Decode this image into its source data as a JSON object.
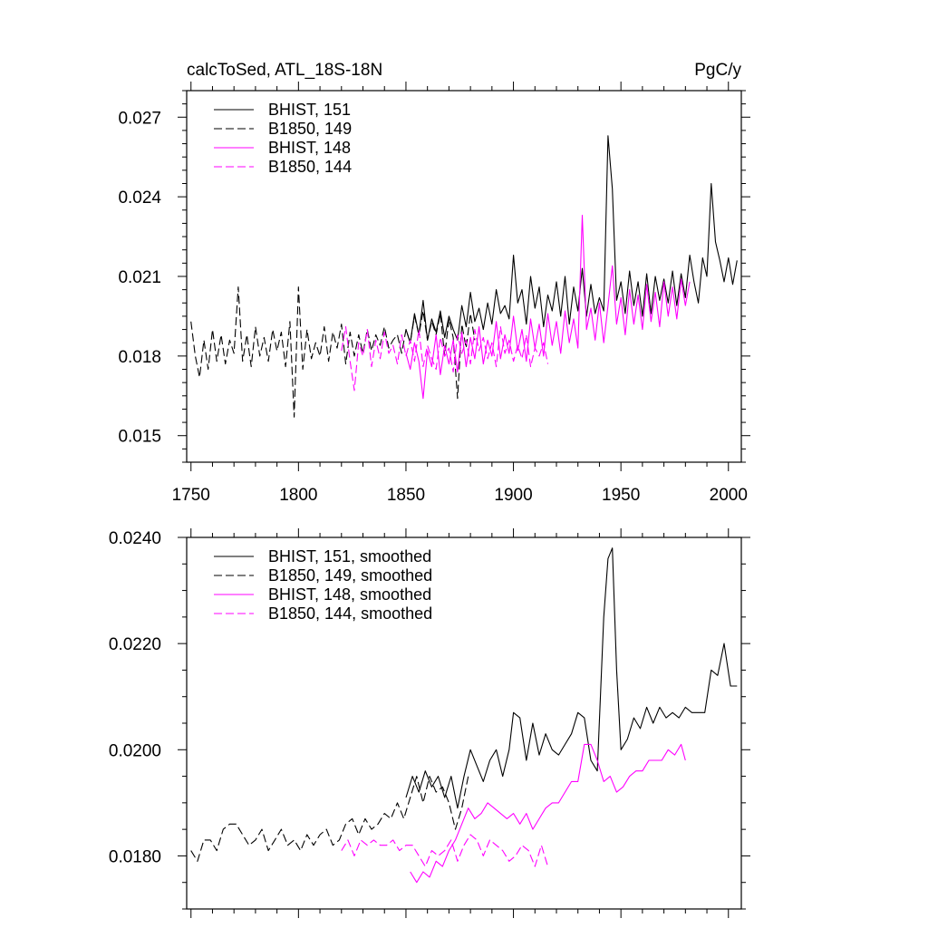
{
  "header": {
    "title": "calcToSed, ATL_18S-18N",
    "units": "PgC/y"
  },
  "colors": {
    "bhist_151": "#000000",
    "b1850_149": "#000000",
    "bhist_148": "#ff00ff",
    "b1850_144": "#ff00ff"
  },
  "chart_data": [
    {
      "type": "line",
      "title": "calcToSed, ATL_18S-18N",
      "ylabel": "PgC/y",
      "xlabel": "",
      "xlim": [
        1748,
        2006
      ],
      "ylim": [
        0.014,
        0.028
      ],
      "x_ticks": [
        1750,
        1800,
        1850,
        1900,
        1950,
        2000
      ],
      "x_tick_labels": [
        "1750",
        "1800",
        "1850",
        "1900",
        "1950",
        "2000"
      ],
      "y_ticks": [
        0.015,
        0.018,
        0.021,
        0.024,
        0.027
      ],
      "y_tick_labels": [
        "0.015",
        "0.018",
        "0.021",
        "0.024",
        "0.027"
      ],
      "legend_position": "top-left",
      "series": [
        {
          "name": "BHIST, 151",
          "style": "solid",
          "color": "#000000",
          "x": [
            1850,
            1852,
            1854,
            1856,
            1858,
            1860,
            1862,
            1864,
            1866,
            1868,
            1870,
            1872,
            1874,
            1876,
            1878,
            1880,
            1882,
            1884,
            1886,
            1888,
            1890,
            1892,
            1894,
            1896,
            1898,
            1900,
            1902,
            1904,
            1906,
            1908,
            1910,
            1912,
            1914,
            1916,
            1918,
            1920,
            1922,
            1924,
            1926,
            1928,
            1930,
            1932,
            1934,
            1936,
            1938,
            1940,
            1942,
            1944,
            1946,
            1948,
            1950,
            1952,
            1954,
            1956,
            1958,
            1960,
            1962,
            1964,
            1966,
            1968,
            1970,
            1972,
            1974,
            1976,
            1978,
            1980,
            1982,
            1984,
            1986,
            1988,
            1990,
            1992,
            1994,
            1996,
            1998,
            2000,
            2002,
            2004
          ],
          "values": [
            0.019,
            0.0185,
            0.0196,
            0.0188,
            0.0201,
            0.0186,
            0.0194,
            0.0189,
            0.0197,
            0.0187,
            0.0195,
            0.019,
            0.0186,
            0.0199,
            0.0191,
            0.0204,
            0.0193,
            0.0198,
            0.019,
            0.02,
            0.0192,
            0.0205,
            0.0196,
            0.0199,
            0.0194,
            0.0218,
            0.02,
            0.0205,
            0.0192,
            0.021,
            0.0198,
            0.0206,
            0.0191,
            0.0203,
            0.0197,
            0.0208,
            0.0195,
            0.021,
            0.0192,
            0.0206,
            0.0197,
            0.0213,
            0.0195,
            0.0207,
            0.0196,
            0.0202,
            0.0197,
            0.0263,
            0.0243,
            0.0201,
            0.0208,
            0.0196,
            0.0212,
            0.0199,
            0.0208,
            0.0195,
            0.0211,
            0.0196,
            0.021,
            0.0201,
            0.0209,
            0.02,
            0.0212,
            0.0199,
            0.0211,
            0.0202,
            0.0218,
            0.0208,
            0.02,
            0.0217,
            0.021,
            0.0245,
            0.0223,
            0.0216,
            0.0208,
            0.0217,
            0.0207,
            0.0216
          ]
        },
        {
          "name": "B1850, 149",
          "style": "dashed",
          "color": "#000000",
          "x": [
            1750,
            1752,
            1754,
            1756,
            1758,
            1760,
            1762,
            1764,
            1766,
            1768,
            1770,
            1772,
            1774,
            1776,
            1778,
            1780,
            1782,
            1784,
            1786,
            1788,
            1790,
            1792,
            1794,
            1796,
            1798,
            1800,
            1802,
            1804,
            1806,
            1808,
            1810,
            1812,
            1814,
            1816,
            1818,
            1820,
            1822,
            1824,
            1826,
            1828,
            1830,
            1832,
            1834,
            1836,
            1838,
            1840,
            1842,
            1844,
            1846,
            1848,
            1850,
            1852,
            1854,
            1856,
            1858,
            1860,
            1862,
            1864,
            1866,
            1868,
            1870,
            1872,
            1874,
            1876,
            1878,
            1880,
            1882
          ],
          "values": [
            0.0193,
            0.018,
            0.0172,
            0.0186,
            0.0175,
            0.019,
            0.0178,
            0.0188,
            0.0177,
            0.0186,
            0.0181,
            0.0206,
            0.0178,
            0.0188,
            0.0176,
            0.0191,
            0.018,
            0.0187,
            0.0178,
            0.019,
            0.0182,
            0.0189,
            0.0176,
            0.0193,
            0.0157,
            0.0206,
            0.0175,
            0.019,
            0.0179,
            0.0185,
            0.018,
            0.0191,
            0.0178,
            0.0189,
            0.0183,
            0.0192,
            0.0177,
            0.0189,
            0.018,
            0.0188,
            0.0181,
            0.019,
            0.0182,
            0.0188,
            0.0184,
            0.0191,
            0.0183,
            0.0186,
            0.0188,
            0.0181,
            0.019,
            0.0185,
            0.0195,
            0.0188,
            0.0197,
            0.0186,
            0.0193,
            0.0188,
            0.0196,
            0.018,
            0.0194,
            0.0187,
            0.0164,
            0.0192,
            0.0183,
            0.0196,
            0.0186
          ]
        },
        {
          "name": "BHIST, 148",
          "style": "solid",
          "color": "#ff00ff",
          "x": [
            1850,
            1852,
            1854,
            1856,
            1858,
            1860,
            1862,
            1864,
            1866,
            1868,
            1870,
            1872,
            1874,
            1876,
            1878,
            1880,
            1882,
            1884,
            1886,
            1888,
            1890,
            1892,
            1894,
            1896,
            1898,
            1900,
            1902,
            1904,
            1906,
            1908,
            1910,
            1912,
            1914,
            1916,
            1918,
            1920,
            1922,
            1924,
            1926,
            1928,
            1930,
            1932,
            1934,
            1936,
            1938,
            1940,
            1942,
            1944,
            1946,
            1948,
            1950,
            1952,
            1954,
            1956,
            1958,
            1960,
            1962,
            1964,
            1966,
            1968,
            1970,
            1972,
            1974,
            1976,
            1978,
            1980,
            1982
          ],
          "values": [
            0.0181,
            0.0175,
            0.0185,
            0.0178,
            0.0164,
            0.0182,
            0.0176,
            0.0188,
            0.0173,
            0.0184,
            0.0177,
            0.0186,
            0.0174,
            0.0189,
            0.0176,
            0.0187,
            0.0179,
            0.0191,
            0.0177,
            0.0186,
            0.018,
            0.0193,
            0.0179,
            0.0188,
            0.0181,
            0.0195,
            0.0182,
            0.019,
            0.0178,
            0.0194,
            0.0183,
            0.0192,
            0.018,
            0.0196,
            0.0184,
            0.0193,
            0.0181,
            0.0197,
            0.0185,
            0.0194,
            0.0183,
            0.0233,
            0.019,
            0.0198,
            0.0186,
            0.02,
            0.0185,
            0.0199,
            0.0214,
            0.0192,
            0.0202,
            0.0188,
            0.0205,
            0.0192,
            0.0203,
            0.019,
            0.0207,
            0.0193,
            0.0204,
            0.0191,
            0.0208,
            0.0195,
            0.0206,
            0.0194,
            0.0209,
            0.0199,
            0.0208
          ]
        },
        {
          "name": "B1850, 144",
          "style": "dashed",
          "color": "#ff00ff",
          "x": [
            1820,
            1822,
            1824,
            1826,
            1828,
            1830,
            1832,
            1834,
            1836,
            1838,
            1840,
            1842,
            1844,
            1846,
            1848,
            1850,
            1852,
            1854,
            1856,
            1858,
            1860,
            1862,
            1864,
            1866,
            1868,
            1870,
            1872,
            1874,
            1876,
            1878,
            1880,
            1882,
            1884,
            1886,
            1888,
            1890,
            1892,
            1894,
            1896,
            1898,
            1900,
            1902,
            1904,
            1906,
            1908,
            1910,
            1912,
            1914,
            1916
          ],
          "values": [
            0.0182,
            0.0191,
            0.0178,
            0.0167,
            0.0185,
            0.018,
            0.019,
            0.0176,
            0.0186,
            0.0179,
            0.0189,
            0.0181,
            0.0184,
            0.0177,
            0.0188,
            0.018,
            0.0186,
            0.0178,
            0.019,
            0.0176,
            0.0184,
            0.0179,
            0.0175,
            0.0187,
            0.018,
            0.0183,
            0.0174,
            0.0188,
            0.0181,
            0.0186,
            0.0177,
            0.019,
            0.0182,
            0.0187,
            0.0179,
            0.0185,
            0.0176,
            0.0191,
            0.0181,
            0.0186,
            0.0178,
            0.0184,
            0.0179,
            0.0188,
            0.0176,
            0.0183,
            0.018,
            0.0185,
            0.0177
          ]
        }
      ]
    },
    {
      "type": "line",
      "title": "",
      "xlabel": "",
      "ylabel": "",
      "xlim": [
        1748,
        2006
      ],
      "ylim": [
        0.017,
        0.024
      ],
      "x_ticks": [
        1750,
        1800,
        1850,
        1900,
        1950,
        2000
      ],
      "y_ticks": [
        0.018,
        0.02,
        0.022,
        0.024
      ],
      "y_tick_labels": [
        "0.0180",
        "0.0200",
        "0.0220",
        "0.0240"
      ],
      "legend_position": "top-left",
      "series": [
        {
          "name": "BHIST, 151, smoothed",
          "style": "solid",
          "color": "#000000",
          "x": [
            1850,
            1853,
            1856,
            1859,
            1862,
            1865,
            1868,
            1871,
            1874,
            1877,
            1880,
            1883,
            1886,
            1889,
            1892,
            1895,
            1898,
            1900,
            1903,
            1906,
            1909,
            1912,
            1915,
            1918,
            1921,
            1924,
            1927,
            1930,
            1933,
            1936,
            1939,
            1942,
            1944,
            1946,
            1948,
            1950,
            1953,
            1956,
            1959,
            1962,
            1965,
            1968,
            1971,
            1974,
            1977,
            1980,
            1983,
            1986,
            1989,
            1992,
            1995,
            1998,
            2001,
            2004
          ],
          "values": [
            0.0191,
            0.0195,
            0.0192,
            0.0196,
            0.0193,
            0.0195,
            0.0191,
            0.0195,
            0.0189,
            0.0195,
            0.02,
            0.0197,
            0.0194,
            0.0198,
            0.02,
            0.0195,
            0.02,
            0.0207,
            0.0206,
            0.0198,
            0.0205,
            0.0199,
            0.0203,
            0.02,
            0.0199,
            0.0201,
            0.0203,
            0.0207,
            0.0206,
            0.0198,
            0.0196,
            0.0225,
            0.0236,
            0.0238,
            0.0215,
            0.02,
            0.0202,
            0.0206,
            0.0204,
            0.0208,
            0.0205,
            0.0208,
            0.0206,
            0.0207,
            0.0206,
            0.0208,
            0.0207,
            0.0207,
            0.0207,
            0.0215,
            0.0214,
            0.022,
            0.0212,
            0.0212
          ]
        },
        {
          "name": "B1850, 149, smoothed",
          "style": "dashed",
          "color": "#000000",
          "x": [
            1750,
            1753,
            1756,
            1759,
            1762,
            1765,
            1768,
            1771,
            1774,
            1777,
            1780,
            1783,
            1786,
            1789,
            1792,
            1795,
            1798,
            1801,
            1804,
            1807,
            1810,
            1813,
            1816,
            1819,
            1822,
            1825,
            1828,
            1831,
            1834,
            1837,
            1840,
            1843,
            1846,
            1849,
            1852,
            1855,
            1858,
            1861,
            1864,
            1867,
            1870,
            1873,
            1876,
            1879
          ],
          "values": [
            0.0181,
            0.0179,
            0.0183,
            0.0183,
            0.0181,
            0.0185,
            0.0186,
            0.0186,
            0.0184,
            0.0182,
            0.0183,
            0.0185,
            0.0181,
            0.0183,
            0.0185,
            0.0182,
            0.0183,
            0.0181,
            0.0184,
            0.0182,
            0.0184,
            0.0185,
            0.0182,
            0.0183,
            0.0186,
            0.0187,
            0.0184,
            0.0187,
            0.0185,
            0.0186,
            0.0188,
            0.0187,
            0.019,
            0.0187,
            0.0191,
            0.0195,
            0.019,
            0.0195,
            0.0192,
            0.0193,
            0.019,
            0.0185,
            0.0189,
            0.0195
          ]
        },
        {
          "name": "BHIST, 148, smoothed",
          "style": "solid",
          "color": "#ff00ff",
          "x": [
            1852,
            1855,
            1858,
            1861,
            1864,
            1867,
            1870,
            1873,
            1876,
            1879,
            1882,
            1885,
            1888,
            1891,
            1894,
            1897,
            1900,
            1903,
            1906,
            1909,
            1912,
            1915,
            1918,
            1921,
            1924,
            1927,
            1930,
            1933,
            1936,
            1939,
            1942,
            1945,
            1948,
            1951,
            1954,
            1957,
            1960,
            1963,
            1966,
            1969,
            1972,
            1975,
            1978,
            1980
          ],
          "values": [
            0.0177,
            0.0175,
            0.0177,
            0.0176,
            0.0179,
            0.0178,
            0.0181,
            0.0183,
            0.0186,
            0.0189,
            0.0187,
            0.0188,
            0.019,
            0.0189,
            0.0188,
            0.0187,
            0.0188,
            0.0186,
            0.0188,
            0.0185,
            0.0187,
            0.0189,
            0.019,
            0.019,
            0.0192,
            0.0194,
            0.0194,
            0.0201,
            0.0201,
            0.0198,
            0.0194,
            0.0195,
            0.0192,
            0.0193,
            0.0195,
            0.0196,
            0.0196,
            0.0198,
            0.0198,
            0.0198,
            0.02,
            0.0199,
            0.0201,
            0.0198
          ]
        },
        {
          "name": "B1850, 144, smoothed",
          "style": "dashed",
          "color": "#ff00ff",
          "x": [
            1820,
            1823,
            1826,
            1829,
            1832,
            1835,
            1838,
            1841,
            1844,
            1847,
            1850,
            1853,
            1856,
            1859,
            1862,
            1865,
            1868,
            1871,
            1874,
            1877,
            1880,
            1883,
            1886,
            1889,
            1892,
            1895,
            1898,
            1901,
            1904,
            1907,
            1910,
            1913,
            1916
          ],
          "values": [
            0.0181,
            0.0183,
            0.018,
            0.0183,
            0.0182,
            0.0183,
            0.0182,
            0.0182,
            0.0183,
            0.0181,
            0.0182,
            0.0182,
            0.018,
            0.0178,
            0.0181,
            0.018,
            0.0181,
            0.0183,
            0.0179,
            0.0182,
            0.0184,
            0.0183,
            0.018,
            0.0183,
            0.0182,
            0.0181,
            0.0179,
            0.018,
            0.0182,
            0.0181,
            0.0178,
            0.0182,
            0.0178
          ]
        }
      ]
    }
  ]
}
